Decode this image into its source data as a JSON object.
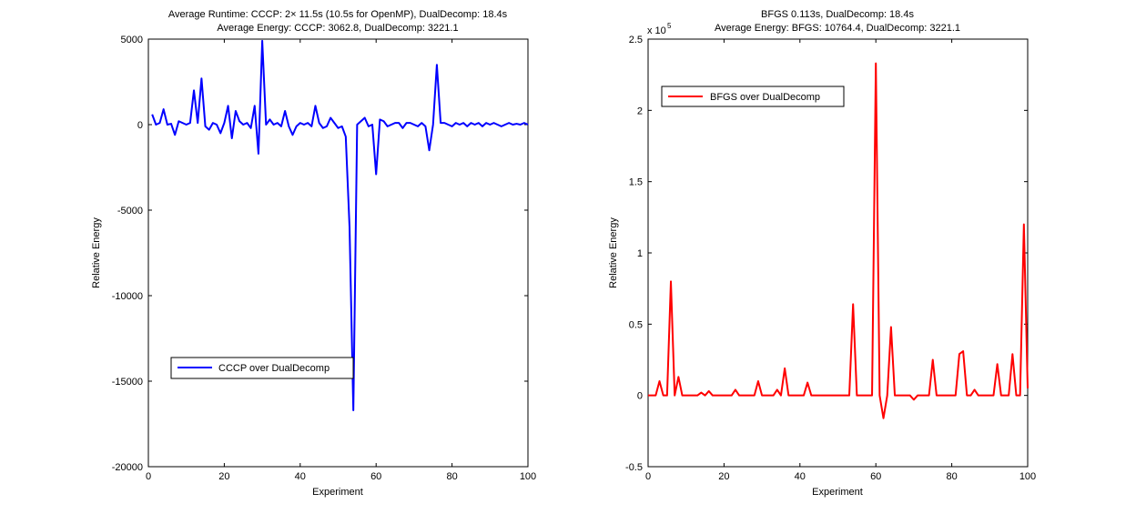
{
  "figure": {
    "background": "#ffffff"
  },
  "chart_data": [
    {
      "type": "line",
      "title_line1": "Average Runtime: CCCP: 2× 11.5s (10.5s for OpenMP), DualDecomp: 18.4s",
      "title_line2": "Average Energy: CCCP: 3062.8, DualDecomp: 3221.1",
      "xlabel": "Experiment",
      "ylabel": "Relative Energy",
      "xlim": [
        0,
        100
      ],
      "ylim": [
        -20000,
        5000
      ],
      "xticks": [
        0,
        20,
        40,
        60,
        80,
        100
      ],
      "yticks": [
        -20000,
        -15000,
        -10000,
        -5000,
        0,
        5000
      ],
      "ytick_labels": [
        "-20000",
        "-15000",
        "-10000",
        "-5000",
        "0",
        "5000"
      ],
      "exponent_label": "",
      "grid": false,
      "legend_position": "lower-left",
      "series": [
        {
          "name": "CCCP over DualDecomp",
          "color": "#0000ff",
          "x": [
            1,
            2,
            3,
            4,
            5,
            6,
            7,
            8,
            9,
            10,
            11,
            12,
            13,
            14,
            15,
            16,
            17,
            18,
            19,
            20,
            21,
            22,
            23,
            24,
            25,
            26,
            27,
            28,
            29,
            30,
            31,
            32,
            33,
            34,
            35,
            36,
            37,
            38,
            39,
            40,
            41,
            42,
            43,
            44,
            45,
            46,
            47,
            48,
            49,
            50,
            51,
            52,
            53,
            54,
            55,
            56,
            57,
            58,
            59,
            60,
            61,
            62,
            63,
            64,
            65,
            66,
            67,
            68,
            69,
            70,
            71,
            72,
            73,
            74,
            75,
            76,
            77,
            78,
            79,
            80,
            81,
            82,
            83,
            84,
            85,
            86,
            87,
            88,
            89,
            90,
            91,
            92,
            93,
            94,
            95,
            96,
            97,
            98,
            99,
            100
          ],
          "values": [
            600,
            0,
            100,
            900,
            0,
            50,
            -600,
            200,
            100,
            0,
            100,
            2000,
            100,
            2700,
            -100,
            -300,
            100,
            0,
            -500,
            100,
            1100,
            -800,
            800,
            200,
            0,
            100,
            -200,
            1100,
            -1700,
            4900,
            0,
            300,
            0,
            100,
            -100,
            800,
            -100,
            -600,
            -100,
            100,
            0,
            100,
            -100,
            1100,
            100,
            -200,
            -100,
            400,
            100,
            -200,
            -100,
            -700,
            -6000,
            -16700,
            0,
            200,
            400,
            -100,
            0,
            -2900,
            300,
            200,
            -100,
            0,
            100,
            100,
            -200,
            100,
            100,
            0,
            -100,
            100,
            -100,
            -1500,
            0,
            3500,
            100,
            100,
            0,
            -100,
            100,
            0,
            100,
            -100,
            100,
            0,
            100,
            -100,
            100,
            0,
            100,
            0,
            -100,
            0,
            100,
            0,
            50,
            0,
            100,
            0
          ]
        }
      ]
    },
    {
      "type": "line",
      "title_line1": "BFGS 0.113s, DualDecomp: 18.4s",
      "title_line2": "Average Energy: BFGS: 10764.4, DualDecomp: 3221.1",
      "xlabel": "Experiment",
      "ylabel": "Relative Energy",
      "xlim": [
        0,
        100
      ],
      "ylim": [
        -50000,
        250000
      ],
      "xticks": [
        0,
        20,
        40,
        60,
        80,
        100
      ],
      "yticks": [
        -50000,
        0,
        50000,
        100000,
        150000,
        200000,
        250000
      ],
      "ytick_labels": [
        "-0.5",
        "0",
        "0.5",
        "1",
        "1.5",
        "2",
        "2.5"
      ],
      "exponent_label": "x 10",
      "exponent_power": "5",
      "grid": false,
      "legend_position": "upper-left",
      "series": [
        {
          "name": "BFGS over DualDecomp",
          "color": "#ff0000",
          "x": [
            0,
            1,
            2,
            3,
            4,
            5,
            6,
            7,
            8,
            9,
            10,
            11,
            12,
            13,
            14,
            15,
            16,
            17,
            18,
            19,
            20,
            21,
            22,
            23,
            24,
            25,
            26,
            27,
            28,
            29,
            30,
            31,
            32,
            33,
            34,
            35,
            36,
            37,
            38,
            39,
            40,
            41,
            42,
            43,
            44,
            45,
            46,
            47,
            48,
            49,
            50,
            51,
            52,
            53,
            54,
            55,
            56,
            57,
            58,
            59,
            60,
            61,
            62,
            63,
            64,
            65,
            66,
            67,
            68,
            69,
            70,
            71,
            72,
            73,
            74,
            75,
            76,
            77,
            78,
            79,
            80,
            81,
            82,
            83,
            84,
            85,
            86,
            87,
            88,
            89,
            90,
            91,
            92,
            93,
            94,
            95,
            96,
            97,
            98,
            99,
            100
          ],
          "values": [
            0,
            0,
            0,
            10000,
            0,
            0,
            80000,
            0,
            13000,
            0,
            0,
            0,
            0,
            0,
            2000,
            0,
            3000,
            0,
            0,
            0,
            0,
            0,
            0,
            4000,
            0,
            0,
            0,
            0,
            0,
            10000,
            0,
            0,
            0,
            0,
            4000,
            0,
            19000,
            0,
            0,
            0,
            0,
            0,
            9000,
            0,
            0,
            0,
            0,
            0,
            0,
            0,
            0,
            0,
            0,
            0,
            64000,
            0,
            0,
            0,
            0,
            0,
            233000,
            0,
            -16000,
            0,
            48000,
            0,
            0,
            0,
            0,
            0,
            -3000,
            0,
            0,
            0,
            0,
            25000,
            0,
            0,
            0,
            0,
            0,
            0,
            29000,
            31000,
            0,
            0,
            4000,
            0,
            0,
            0,
            0,
            0,
            22000,
            0,
            0,
            0,
            29000,
            0,
            0,
            120000,
            5000
          ]
        }
      ]
    }
  ]
}
